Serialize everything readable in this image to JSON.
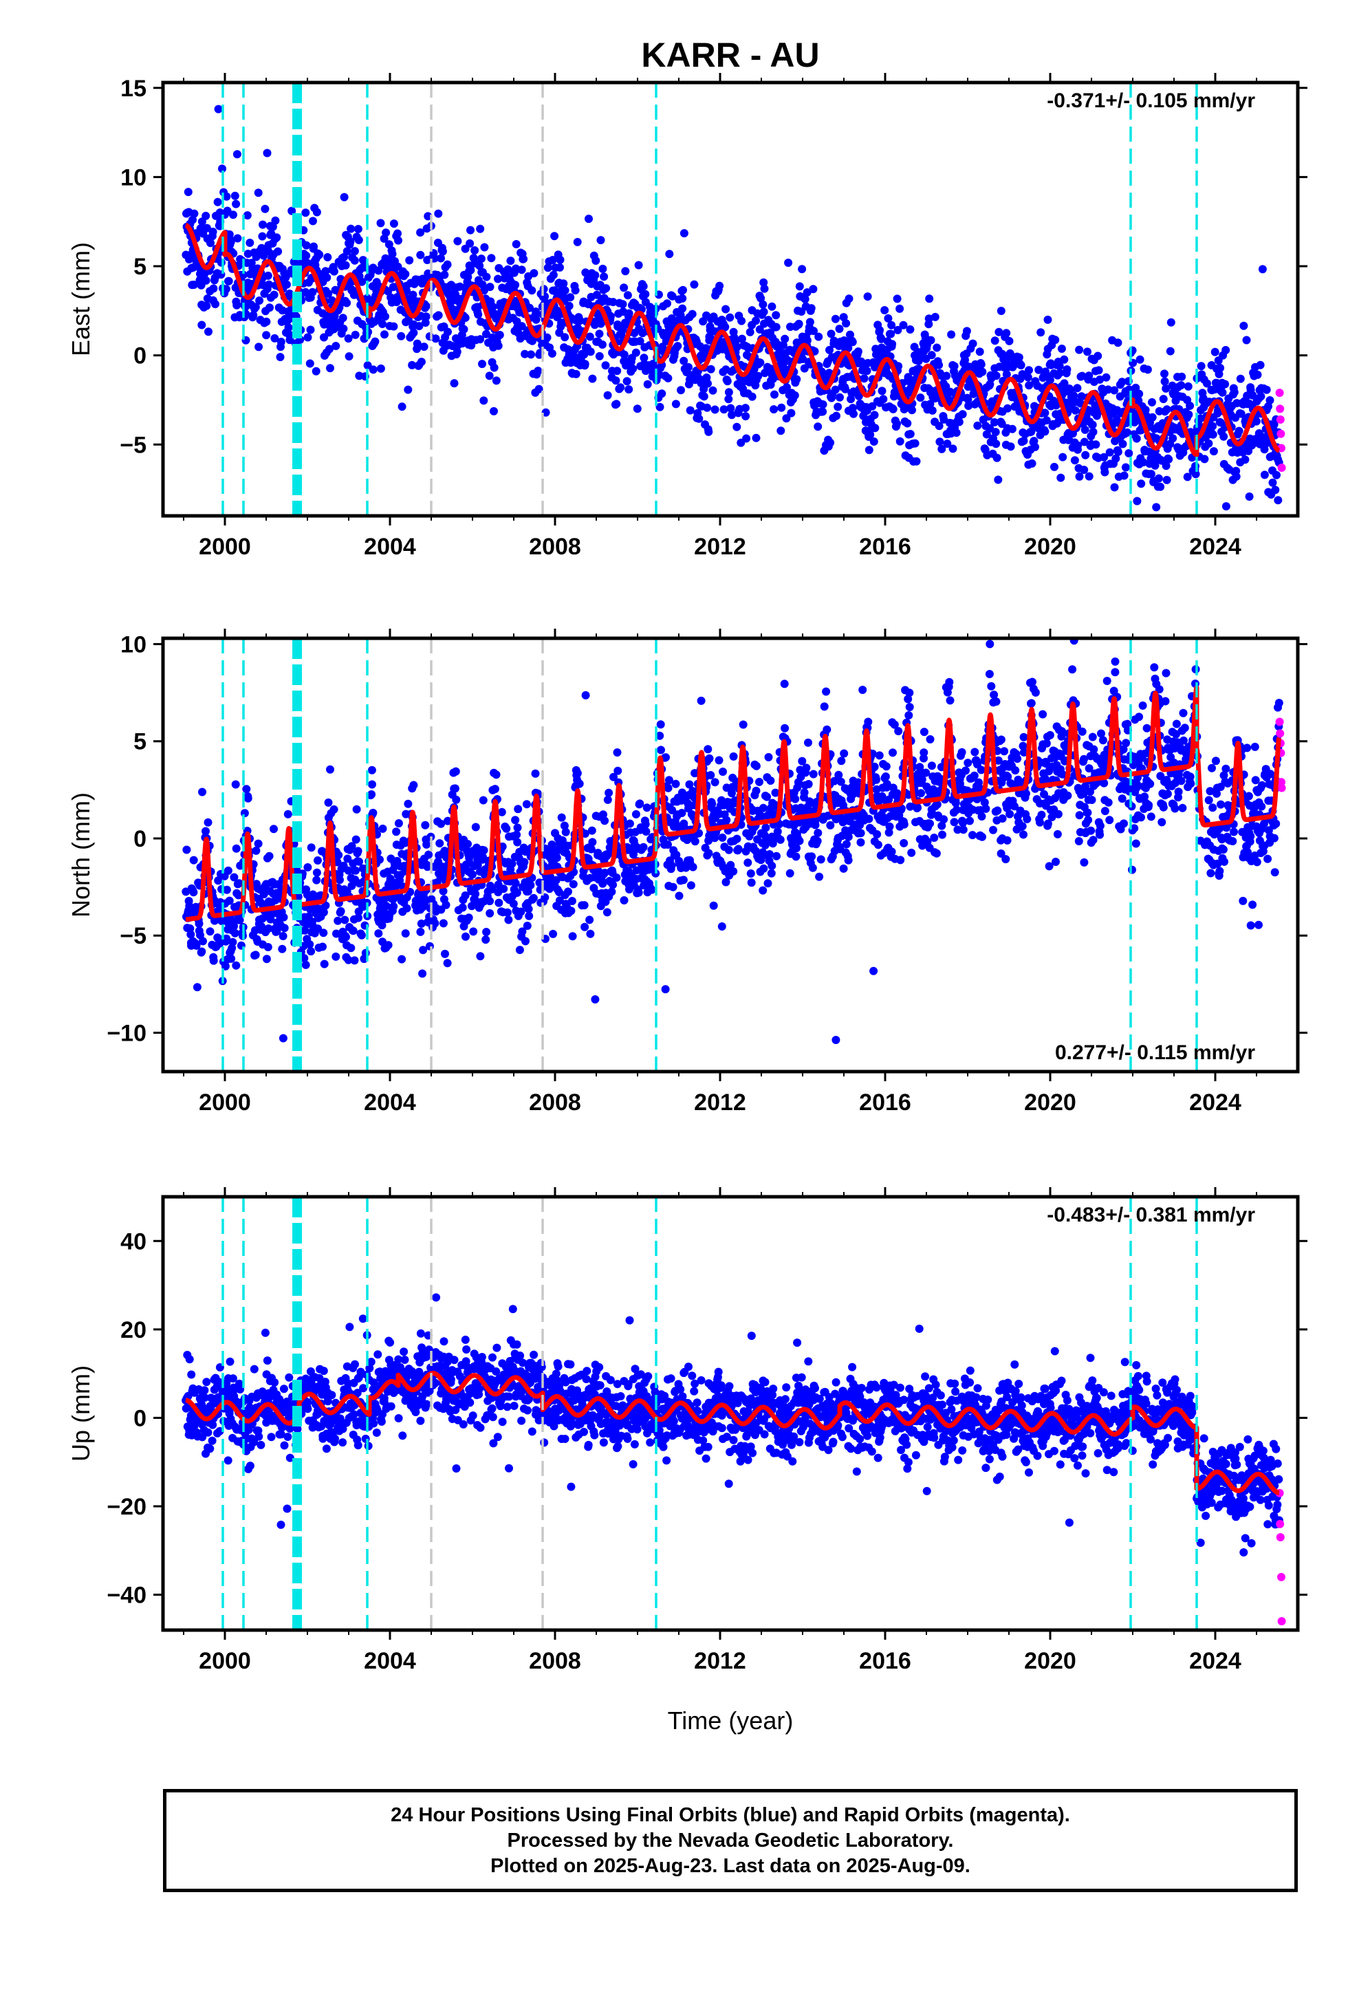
{
  "title": "KARR - AU",
  "xlabel": "Time (year)",
  "colors": {
    "final_orbits": "#0000ff",
    "rapid_orbits": "#ff00ff",
    "model": "#ff0000",
    "equipment_change_line": "#00e6e6",
    "other_event_line": "#c8c8c8"
  },
  "chart_data": [
    {
      "type": "scatter",
      "component": "East",
      "ylabel": "East (mm)",
      "rate_label": "-0.371+/- 0.105 mm/yr",
      "xlim": [
        1998.5,
        2026.0
      ],
      "ylim": [
        -9,
        15.3
      ],
      "xticks": [
        2000,
        2004,
        2008,
        2012,
        2016,
        2020,
        2024
      ],
      "yticks": [
        -5,
        0,
        5,
        10,
        15
      ],
      "series": [
        {
          "color": "#0000ff",
          "description_key": "final_orbits",
          "start": 1999.05,
          "end": 2025.55
        },
        {
          "color": "#ff00ff",
          "description_key": "rapid_orbits",
          "x": [
            2025.56,
            2025.57,
            2025.58,
            2025.59,
            2025.6,
            2025.61
          ],
          "y": [
            -2.1,
            -3.0,
            -3.6,
            -4.4,
            -5.2,
            -6.3
          ]
        },
        {
          "color": "#ff0000",
          "description_key": "model",
          "line": true
        }
      ],
      "model": {
        "offsets": [
          [
            1999.05,
            6.2
          ],
          [
            2000.0,
            4.6
          ],
          [
            2000.4,
            4.4
          ],
          [
            2003.5,
            3.7
          ],
          [
            2010.45,
            0.8
          ],
          [
            2014.9,
            -0.9
          ],
          [
            2022.0,
            -3.9
          ],
          [
            2023.55,
            -3.5
          ]
        ],
        "rate": -0.371,
        "amplitude": 1.1
      },
      "scatter_noise": 1.6
    },
    {
      "type": "scatter",
      "component": "North",
      "ylabel": "North (mm)",
      "rate_label": "0.277+/- 0.115 mm/yr",
      "xlim": [
        1998.5,
        2026.0
      ],
      "ylim": [
        -12,
        10.3
      ],
      "xticks": [
        2000,
        2004,
        2008,
        2012,
        2016,
        2020,
        2024
      ],
      "yticks": [
        -10,
        -5,
        0,
        5,
        10
      ],
      "series": [
        {
          "color": "#0000ff",
          "description_key": "final_orbits",
          "start": 1999.05,
          "end": 2025.55
        },
        {
          "color": "#ff00ff",
          "description_key": "rapid_orbits",
          "x": [
            2025.56,
            2025.57,
            2025.58,
            2025.59,
            2025.6,
            2025.61
          ],
          "y": [
            6.0,
            5.4,
            4.9,
            4.4,
            2.9,
            2.6
          ]
        },
        {
          "color": "#ff0000",
          "description_key": "model",
          "line": true
        }
      ],
      "model": {
        "offsets": [
          [
            1999.05,
            -3.3
          ],
          [
            2010.45,
            1.0
          ],
          [
            2022.0,
            4.2
          ],
          [
            2023.55,
            1.5
          ]
        ],
        "rate": 0.277,
        "amplitude": 2.5
      },
      "scatter_noise": 1.5
    },
    {
      "type": "scatter",
      "component": "Up",
      "ylabel": "Up (mm)",
      "rate_label": "-0.483+/- 0.381 mm/yr",
      "xlim": [
        1998.5,
        2026.0
      ],
      "ylim": [
        -48,
        50
      ],
      "xticks": [
        2000,
        2004,
        2008,
        2012,
        2016,
        2020,
        2024
      ],
      "yticks": [
        -40,
        -20,
        0,
        20,
        40
      ],
      "series": [
        {
          "color": "#0000ff",
          "description_key": "final_orbits",
          "start": 1999.05,
          "end": 2025.55
        },
        {
          "color": "#ff00ff",
          "description_key": "rapid_orbits",
          "x": [
            2025.56,
            2025.57,
            2025.58,
            2025.6,
            2025.61
          ],
          "y": [
            -17,
            -24,
            -27,
            -36,
            -46
          ]
        },
        {
          "color": "#ff0000",
          "description_key": "model",
          "line": true
        }
      ],
      "model": {
        "offsets": [
          [
            1999.05,
            2.0
          ],
          [
            2001.8,
            3.5
          ],
          [
            2003.5,
            6.5
          ],
          [
            2004.2,
            8.5
          ],
          [
            2007.7,
            3.0
          ],
          [
            2014.9,
            1.5
          ],
          [
            2022.0,
            0.5
          ],
          [
            2023.55,
            -14.0
          ]
        ],
        "rate": -0.483,
        "amplitude": 2.0
      },
      "scatter_noise": 4.0
    }
  ],
  "event_lines": {
    "cyan_dashed": [
      1999.95,
      2000.45,
      2003.45,
      2010.45,
      2021.95,
      2023.55
    ],
    "cyan_thick": [
      2001.75
    ],
    "gray_dashed": [
      2005.0,
      2007.7
    ]
  },
  "footer": {
    "line1": "24 Hour Positions Using Final Orbits (blue) and Rapid Orbits (magenta).",
    "line2": "Processed by the Nevada Geodetic Laboratory.",
    "line3": "Plotted on 2025-Aug-23. Last data on 2025-Aug-09."
  }
}
